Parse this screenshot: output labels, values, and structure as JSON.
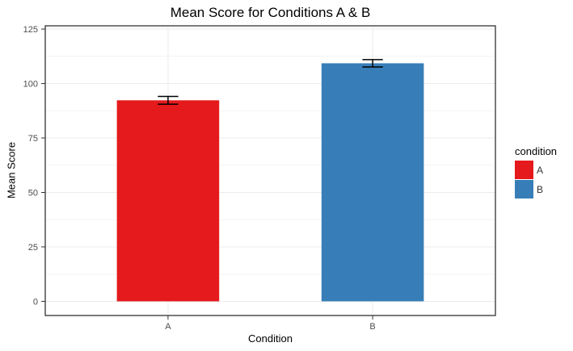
{
  "chart_data": {
    "type": "bar",
    "title": "Mean Score for Conditions A & B",
    "xlabel": "Condition",
    "ylabel": "Mean Score",
    "categories": [
      "A",
      "B"
    ],
    "series": [
      {
        "name": "condition",
        "values": [
          92.3,
          109.3
        ],
        "errors": [
          1.8,
          1.7
        ]
      }
    ],
    "bar_colors": [
      "#E41A1C",
      "#377EB8"
    ],
    "yticks": [
      0,
      25,
      50,
      75,
      100,
      125
    ],
    "yminor": [
      12.5,
      37.5,
      62.5,
      87.5,
      112.5
    ],
    "ylim": [
      -6.5,
      126.5
    ],
    "grid": "major and minor horizontal, major vertical at category centers",
    "legend": {
      "title": "condition",
      "position": "right",
      "entries": [
        {
          "label": "A",
          "color": "#E41A1C"
        },
        {
          "label": "B",
          "color": "#377EB8"
        }
      ]
    }
  },
  "theme": {
    "background": "#ffffff",
    "panel_background": "#ffffff",
    "panel_border": "#333333",
    "grid_major": "#ebebeb",
    "grid_minor": "#f4f4f4",
    "axis_text_color": "#4d4d4d",
    "tick_color": "#333333",
    "errorbar_color": "#000000"
  }
}
